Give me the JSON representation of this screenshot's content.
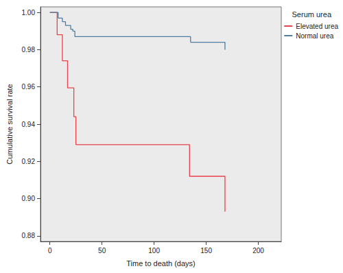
{
  "chart_data": {
    "type": "line",
    "line_style": "step",
    "xlabel": "Time to death (days)",
    "ylabel": "Cumulative survival rate",
    "legend_title": "Serum urea",
    "legend": "upper right",
    "grid": false,
    "xlim": [
      -9,
      222
    ],
    "xticks": [
      0,
      50,
      100,
      150,
      200
    ],
    "ylim": [
      0.877,
      1.003
    ],
    "yticks": [
      {
        "value": 0.88,
        "label": "0.88"
      },
      {
        "value": 0.9,
        "label": "0.90"
      },
      {
        "value": 0.92,
        "label": "0.92"
      },
      {
        "value": 0.94,
        "label": "0.94"
      },
      {
        "value": 0.96,
        "label": "0.96"
      },
      {
        "value": 0.98,
        "label": "0.98"
      },
      {
        "value": 1,
        "label": "1.00"
      }
    ],
    "series": [
      {
        "name": "Elevated urea",
        "color": "#e8414a",
        "x": [
          0,
          7,
          12,
          17,
          23,
          25,
          134,
          168
        ],
        "values": [
          1.0,
          0.988,
          0.974,
          0.9595,
          0.944,
          0.929,
          0.912,
          0.893
        ]
      },
      {
        "name": "Normal urea",
        "color": "#4f7d9f",
        "x": [
          0,
          8,
          12,
          15,
          20,
          22,
          24,
          135,
          168
        ],
        "values": [
          1.0,
          0.997,
          0.995,
          0.993,
          0.991,
          0.99,
          0.987,
          0.984,
          0.98
        ]
      }
    ]
  }
}
